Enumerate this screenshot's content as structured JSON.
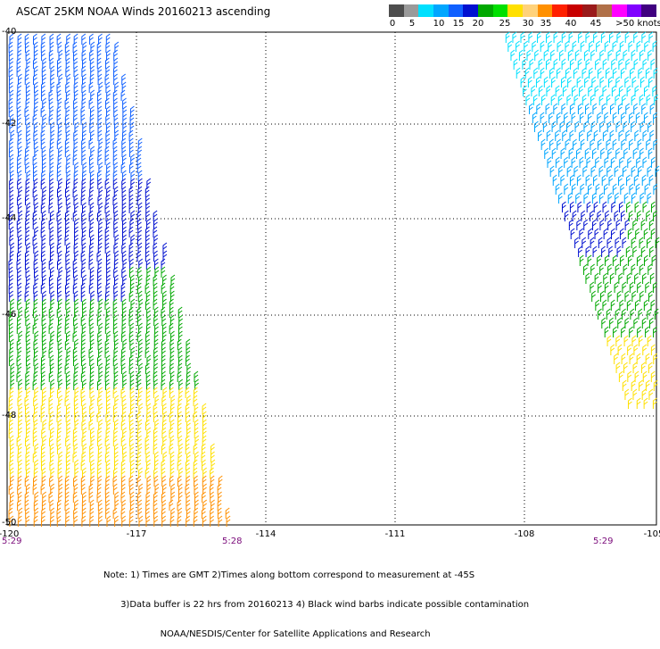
{
  "title": "ASCAT 25KM NOAA Winds 20160213 ascending",
  "legend": {
    "colors": [
      "#4d4d4d",
      "#9a9a9a",
      "#00e0ff",
      "#00a6ff",
      "#1060ff",
      "#0010d0",
      "#00a800",
      "#00e000",
      "#ffe000",
      "#ffd27a",
      "#ff9000",
      "#ff2000",
      "#c80000",
      "#9a1a1a",
      "#b07048",
      "#ff00ff",
      "#8000ff",
      "#400080"
    ],
    "labels": [
      "0",
      "5",
      "10",
      "15",
      "20",
      "25",
      "30",
      "35",
      "40",
      "45",
      ">50 knots"
    ]
  },
  "axes": {
    "x_labels": [
      "-120",
      "-117",
      "-114",
      "-111",
      "-108",
      "-105"
    ],
    "y_labels": [
      "-40",
      "-42",
      "-44",
      "-46",
      "-48",
      "-50"
    ]
  },
  "time_labels": [
    "5:29",
    "5:28",
    "5:29"
  ],
  "notes": [
    "Note: 1) Times are GMT 2)Times along bottom correspond to measurement at -45S",
    "      3)Data buffer is 22 hrs from 20160213 4) Black wind barbs indicate possible contamination",
    "                    NOAA/NESDIS/Center for Satellite Applications and Research"
  ],
  "swaths": [
    {
      "name": "western-swath",
      "dominant_colors": [
        "#0010d0",
        "#00a800",
        "#ffe000",
        "#ff9000"
      ]
    },
    {
      "name": "eastern-swath",
      "dominant_colors": [
        "#00e0ff",
        "#1060ff",
        "#00a800",
        "#ffe000"
      ]
    }
  ]
}
